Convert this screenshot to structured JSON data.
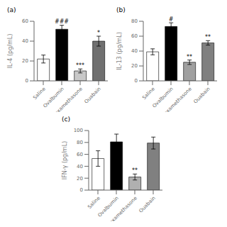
{
  "chart_data": [
    {
      "type": "bar",
      "title": "(a)",
      "ylabel": "IL-4 (pg/mL)",
      "categories": [
        "Saline",
        "Ovalbumin",
        "Dexamethasone",
        "Ouabain"
      ],
      "values": [
        22,
        52,
        10,
        40
      ],
      "errors": [
        4,
        4,
        2,
        5
      ],
      "colors": [
        "white",
        "black",
        "#c8c8c8",
        "#707070"
      ],
      "ylim": [
        0,
        60
      ],
      "yticks": [
        0,
        20,
        40,
        60
      ],
      "annotations": [
        {
          "category": "Ovalbumin",
          "text": "###",
          "y": 57
        },
        {
          "category": "Dexamethasone",
          "text": "***",
          "y": 13
        },
        {
          "category": "Ouabain",
          "text": "*",
          "y": 46
        }
      ]
    },
    {
      "type": "bar",
      "title": "(b)",
      "ylabel": "IL-13 (pg/mL)",
      "categories": [
        "Saline",
        "Ovalbumin",
        "Dexamethasone",
        "Ouabain"
      ],
      "values": [
        39,
        73,
        25,
        51
      ],
      "errors": [
        4,
        5,
        3,
        3
      ],
      "colors": [
        "white",
        "black",
        "#a0a0a0",
        "#808080"
      ],
      "ylim": [
        0,
        80
      ],
      "yticks": [
        0,
        20,
        40,
        60,
        80
      ],
      "annotations": [
        {
          "category": "Ovalbumin",
          "text": "#",
          "y": 79
        },
        {
          "category": "Dexamethasone",
          "text": "**",
          "y": 29
        },
        {
          "category": "Ouabain",
          "text": "**",
          "y": 55
        }
      ]
    },
    {
      "type": "bar",
      "title": "(c)",
      "ylabel": "IFN-γ (pg/mL)",
      "categories": [
        "Saline",
        "Ovalbumin",
        "Dexamethasone",
        "Ouabain"
      ],
      "values": [
        53,
        81,
        22,
        79
      ],
      "errors": [
        13,
        13,
        5,
        10
      ],
      "colors": [
        "white",
        "black",
        "#b0b0b0",
        "#808080"
      ],
      "ylim": [
        0,
        100
      ],
      "yticks": [
        0,
        20,
        40,
        60,
        80,
        100
      ],
      "annotations": [
        {
          "category": "Dexamethasone",
          "text": "**",
          "y": 28
        }
      ]
    }
  ]
}
